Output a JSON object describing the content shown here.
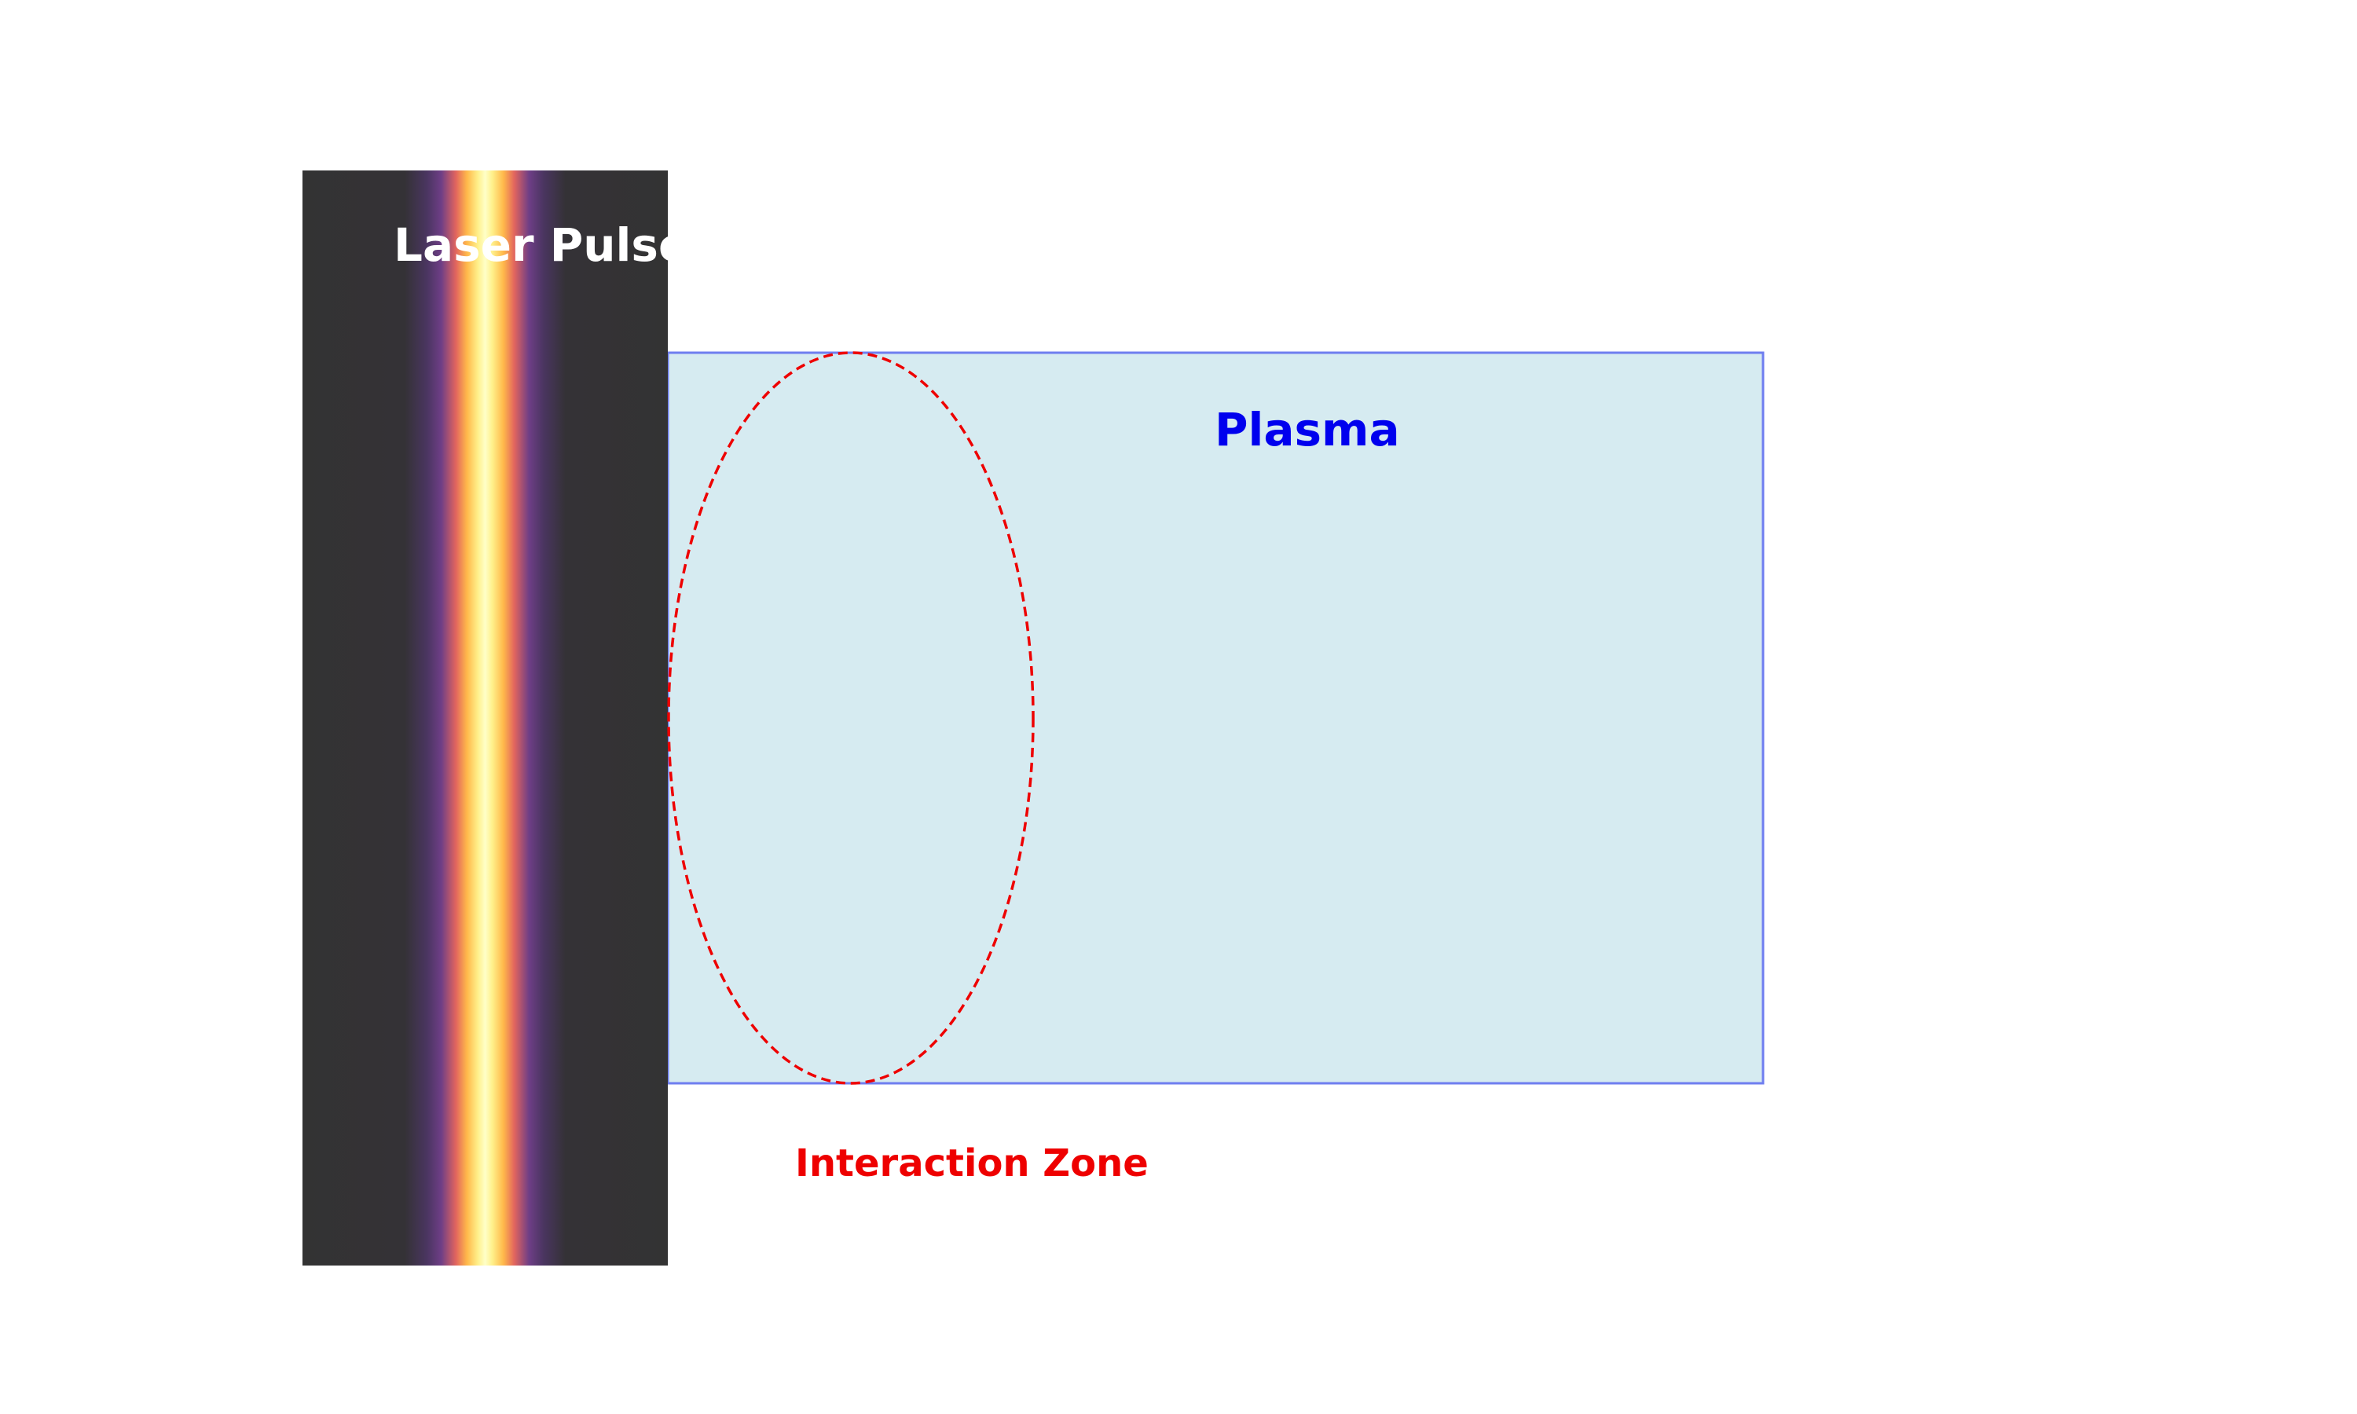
{
  "laser": {
    "label": "Laser Pulse",
    "background_color": "#333333",
    "gradient_colors": [
      "#333333",
      "#5a3a7a",
      "#e8645a",
      "#ffd24a",
      "#ffffc0"
    ]
  },
  "plasma": {
    "label": "Plasma",
    "fill_color": "#d6ebf1",
    "border_color": "#6f7ef0",
    "label_color": "#0000ee"
  },
  "interaction_zone": {
    "label": "Interaction Zone",
    "stroke_color": "#ee0000",
    "stroke_style": "dashed"
  }
}
